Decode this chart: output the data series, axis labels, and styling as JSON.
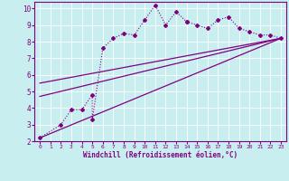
{
  "title": "",
  "xlabel": "Windchill (Refroidissement éolien,°C)",
  "ylabel": "",
  "bg_color": "#c8eef0",
  "line_color": "#800080",
  "xlim": [
    -0.5,
    23.5
  ],
  "ylim": [
    2,
    10.4
  ],
  "xticks": [
    0,
    1,
    2,
    3,
    4,
    5,
    6,
    7,
    8,
    9,
    10,
    11,
    12,
    13,
    14,
    15,
    16,
    17,
    18,
    19,
    20,
    21,
    22,
    23
  ],
  "yticks": [
    2,
    3,
    4,
    5,
    6,
    7,
    8,
    9,
    10
  ],
  "scatter_x": [
    0,
    2,
    3,
    4,
    5,
    5,
    6,
    7,
    8,
    9,
    10,
    11,
    12,
    13,
    14,
    14,
    15,
    16,
    17,
    18,
    19,
    20,
    21,
    22,
    23
  ],
  "scatter_y": [
    2.2,
    3.0,
    3.9,
    3.9,
    4.8,
    3.3,
    7.6,
    8.2,
    8.5,
    8.4,
    9.3,
    10.2,
    9.0,
    9.8,
    9.2,
    9.2,
    9.0,
    8.8,
    9.3,
    9.5,
    8.8,
    8.6,
    8.4,
    8.4,
    8.2
  ],
  "line1_x": [
    0,
    23
  ],
  "line1_y": [
    2.2,
    8.2
  ],
  "line2_x": [
    0,
    23
  ],
  "line2_y": [
    4.7,
    8.2
  ],
  "line3_x": [
    0,
    23
  ],
  "line3_y": [
    5.5,
    8.2
  ]
}
